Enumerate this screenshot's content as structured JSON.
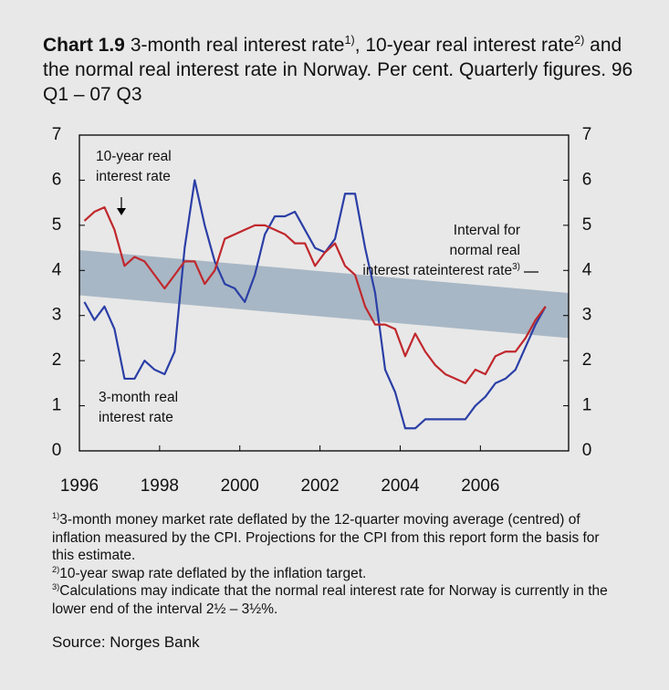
{
  "chart_data": {
    "type": "line",
    "title_label": "Chart 1.9",
    "title_parts": [
      "3-month real interest rate",
      "1)",
      ", 10-year real interest rate",
      "2)",
      " and the normal real interest rate in Norway. Per cent. Quarterly figures. 96 Q1 –  07 Q3"
    ],
    "x": [
      1996.125,
      1996.375,
      1996.625,
      1996.875,
      1997.125,
      1997.375,
      1997.625,
      1997.875,
      1998.125,
      1998.375,
      1998.625,
      1998.875,
      1999.125,
      1999.375,
      1999.625,
      1999.875,
      2000.125,
      2000.375,
      2000.625,
      2000.875,
      2001.125,
      2001.375,
      2001.625,
      2001.875,
      2002.125,
      2002.375,
      2002.625,
      2002.875,
      2003.125,
      2003.375,
      2003.625,
      2003.875,
      2004.125,
      2004.375,
      2004.625,
      2004.875,
      2005.125,
      2005.375,
      2005.625,
      2005.875,
      2006.125,
      2006.375,
      2006.625,
      2006.875,
      2007.125,
      2007.375,
      2007.625
    ],
    "series": [
      {
        "color": "#2b3fa6",
        "values": [
          3.3,
          2.9,
          3.2,
          2.7,
          1.6,
          1.6,
          2.0,
          1.8,
          1.7,
          2.2,
          4.5,
          6.0,
          5.0,
          4.2,
          3.7,
          3.6,
          3.3,
          3.9,
          4.8,
          5.2,
          5.2,
          5.3,
          4.9,
          4.5,
          4.4,
          4.7,
          5.7,
          5.7,
          4.5,
          3.5,
          1.8,
          1.3,
          0.5,
          0.5,
          0.7,
          0.7,
          0.7,
          0.7,
          0.7,
          1.0,
          1.2,
          1.5,
          1.6,
          1.8,
          2.3,
          2.8,
          3.2
        ]
      },
      {
        "color": "#c0282d",
        "values": [
          5.1,
          5.3,
          5.4,
          4.9,
          4.1,
          4.3,
          4.2,
          3.9,
          3.6,
          3.9,
          4.2,
          4.2,
          3.7,
          4.0,
          4.7,
          4.8,
          4.9,
          5.0,
          5.0,
          4.9,
          4.8,
          4.6,
          4.6,
          4.1,
          4.4,
          4.6,
          4.1,
          3.9,
          3.2,
          2.8,
          2.8,
          2.7,
          2.1,
          2.6,
          2.2,
          1.9,
          1.7,
          1.6,
          1.5,
          1.8,
          1.7,
          2.1,
          2.2,
          2.2,
          2.5,
          2.9,
          3.2
        ]
      }
    ],
    "band": {
      "color": "#a8b7c5",
      "x": [
        1996,
        2008.2
      ],
      "upper": [
        4.45,
        3.5
      ],
      "lower": [
        3.45,
        2.5
      ]
    },
    "annotations": [
      {
        "lines": [
          "10-year real",
          "interest rate"
        ]
      },
      {
        "lines": [
          "3-month real",
          "interest rate"
        ]
      },
      {
        "lines": [
          "Interval for",
          "normal real",
          "interest rate"
        ],
        "sup": "3)"
      }
    ],
    "xlim": [
      1996,
      2008.2
    ],
    "xticks": [
      1996,
      1998,
      2000,
      2002,
      2004,
      2006
    ],
    "ylim": [
      0,
      7
    ],
    "yticks": [
      0,
      1,
      2,
      3,
      4,
      5,
      6,
      7
    ],
    "y2lim": [
      0,
      7
    ],
    "y2ticks": [
      0,
      1,
      2,
      3,
      4,
      5,
      6,
      7
    ],
    "footnotes": [
      {
        "marker": "1)",
        "text": "3-month money market rate deflated by the 12-quarter moving average (centred) of inflation measured by the CPI. Projections for the CPI from this report form the basis for this estimate."
      },
      {
        "marker": "2)",
        "text": "10-year swap rate deflated by the inflation target."
      },
      {
        "marker": "3)",
        "text": "Calculations may indicate that the normal real interest rate for Norway is currently in the lower end of the interval 2½ – 3½%."
      }
    ],
    "source": "Source: Norges Bank"
  }
}
